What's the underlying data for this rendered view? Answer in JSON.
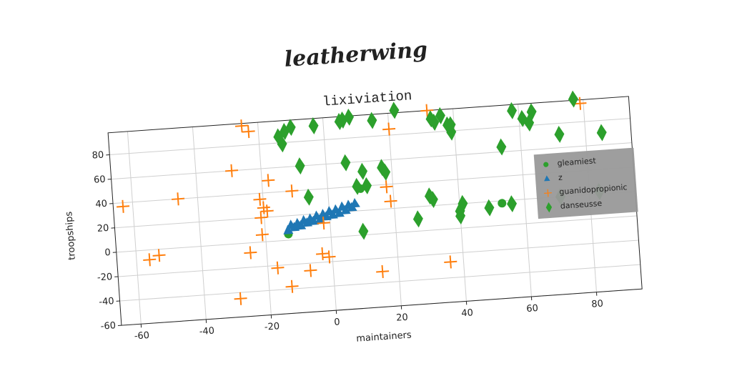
{
  "chart_data": {
    "type": "scatter",
    "title": "leatherwing",
    "subtitle": "lixiviation",
    "x_label": "maintainers",
    "y_label": "troopships",
    "xlim": [
      -66,
      94
    ],
    "ylim": [
      -60,
      98
    ],
    "xticks": [
      -60,
      -40,
      -20,
      0,
      20,
      40,
      60,
      80
    ],
    "yticks": [
      -60,
      -40,
      -20,
      0,
      20,
      40,
      60,
      80
    ],
    "grid": true,
    "legend": "right",
    "series": [
      {
        "name": "gleamiest",
        "color": "#2ca02c",
        "marker": "circle",
        "x": [
          -13,
          10,
          53
        ],
        "y": [
          5,
          38,
          18
        ]
      },
      {
        "name": "z",
        "color": "#1f77b4",
        "marker": "triangle",
        "x": [
          -13,
          -11,
          -9,
          -7,
          -5,
          -3,
          -1,
          1,
          3,
          5,
          7,
          8,
          -12,
          -10,
          -8,
          -6,
          -4,
          -2,
          0,
          2,
          4,
          6
        ],
        "y": [
          8,
          10,
          11,
          13,
          14,
          15,
          17,
          18,
          19,
          21,
          23,
          26,
          12,
          13,
          15,
          16,
          18,
          19,
          21,
          22,
          24,
          25
        ]
      },
      {
        "name": "guanidopropionic",
        "color": "#ff7f0e",
        "marker": "plus",
        "x": [
          -63,
          -46,
          -56,
          -53,
          -25,
          -23,
          -29,
          -18,
          -21,
          -20,
          -19,
          -21,
          -21,
          -25,
          -17,
          -13,
          -29,
          -11,
          -7,
          -3,
          -1,
          -2,
          18,
          19,
          20,
          32,
          36,
          15,
          79
        ],
        "y": [
          37,
          40,
          -8,
          -5,
          96,
          91,
          60,
          50,
          35,
          28,
          25,
          20,
          6,
          -8,
          -22,
          -38,
          -45,
          40,
          -26,
          -13,
          -16,
          12,
          38,
          26,
          85,
          98,
          -27,
          -31,
          95
        ]
      },
      {
        "name": "danseusse",
        "color": "#2ca02c",
        "marker": "diamond",
        "x": [
          -12,
          -14,
          -13,
          -10,
          -8,
          -6,
          -3,
          5,
          6,
          8,
          9,
          11,
          15,
          22,
          17,
          18,
          12,
          10,
          6,
          31,
          32,
          33,
          34,
          36,
          38,
          39,
          40,
          40,
          41,
          27,
          39,
          49,
          54,
          56,
          58,
          61,
          63,
          64,
          72,
          77,
          85,
          83,
          71
        ],
        "y": [
          89,
          85,
          79,
          92,
          60,
          34,
          92,
          94,
          60,
          97,
          40,
          52,
          93,
          100,
          54,
          50,
          40,
          3,
          95,
          28,
          25,
          91,
          88,
          93,
          85,
          79,
          10,
          14,
          20,
          10,
          85,
          15,
          64,
          17,
          93,
          86,
          82,
          91,
          71,
          99,
          70,
          22,
          20
        ]
      }
    ]
  }
}
